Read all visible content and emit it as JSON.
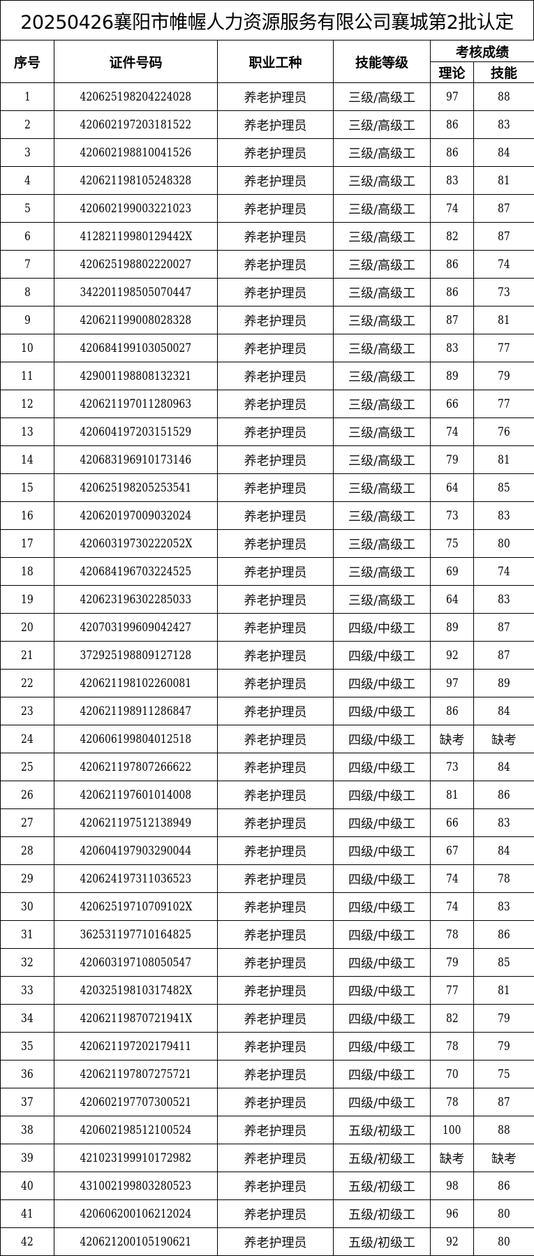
{
  "title": "20250426襄阳市帷幄人力资源服务有限公司襄城第2批认定",
  "headers": {
    "index": "序号",
    "id_number": "证件号码",
    "occupation": "职业工种",
    "skill_level": "技能等级",
    "scores": "考核成绩",
    "theory": "理论",
    "skill": "技能"
  },
  "rows": [
    [
      "1",
      "420625198204224028",
      "养老护理员",
      "三级/高级工",
      "97",
      "88"
    ],
    [
      "2",
      "420602197203181522",
      "养老护理员",
      "三级/高级工",
      "86",
      "83"
    ],
    [
      "3",
      "420602198810041526",
      "养老护理员",
      "三级/高级工",
      "86",
      "84"
    ],
    [
      "4",
      "420621198105248328",
      "养老护理员",
      "三级/高级工",
      "83",
      "81"
    ],
    [
      "5",
      "420602199003221023",
      "养老护理员",
      "三级/高级工",
      "74",
      "87"
    ],
    [
      "6",
      "41282119980129442X",
      "养老护理员",
      "三级/高级工",
      "82",
      "87"
    ],
    [
      "7",
      "420625198802220027",
      "养老护理员",
      "三级/高级工",
      "86",
      "74"
    ],
    [
      "8",
      "342201198505070447",
      "养老护理员",
      "三级/高级工",
      "86",
      "73"
    ],
    [
      "9",
      "420621199008028328",
      "养老护理员",
      "三级/高级工",
      "87",
      "81"
    ],
    [
      "10",
      "420684199103050027",
      "养老护理员",
      "三级/高级工",
      "83",
      "77"
    ],
    [
      "11",
      "429001198808132321",
      "养老护理员",
      "三级/高级工",
      "89",
      "79"
    ],
    [
      "12",
      "420621197011280963",
      "养老护理员",
      "三级/高级工",
      "66",
      "77"
    ],
    [
      "13",
      "420604197203151529",
      "养老护理员",
      "三级/高级工",
      "74",
      "76"
    ],
    [
      "14",
      "420683196910173146",
      "养老护理员",
      "三级/高级工",
      "79",
      "81"
    ],
    [
      "15",
      "420625198205253541",
      "养老护理员",
      "三级/高级工",
      "64",
      "85"
    ],
    [
      "16",
      "420620197009032024",
      "养老护理员",
      "三级/高级工",
      "73",
      "83"
    ],
    [
      "17",
      "42060319730222052X",
      "养老护理员",
      "三级/高级工",
      "75",
      "80"
    ],
    [
      "18",
      "420684196703224525",
      "养老护理员",
      "三级/高级工",
      "69",
      "74"
    ],
    [
      "19",
      "420623196302285033",
      "养老护理员",
      "三级/高级工",
      "64",
      "83"
    ],
    [
      "20",
      "420703199609042427",
      "养老护理员",
      "四级/中级工",
      "89",
      "87"
    ],
    [
      "21",
      "372925198809127128",
      "养老护理员",
      "四级/中级工",
      "92",
      "87"
    ],
    [
      "22",
      "420621198102260081",
      "养老护理员",
      "四级/中级工",
      "97",
      "89"
    ],
    [
      "23",
      "420621198911286847",
      "养老护理员",
      "四级/中级工",
      "86",
      "84"
    ],
    [
      "24",
      "420606199804012518",
      "养老护理员",
      "四级/中级工",
      "缺考",
      "缺考"
    ],
    [
      "25",
      "420621197807266622",
      "养老护理员",
      "四级/中级工",
      "73",
      "84"
    ],
    [
      "26",
      "420621197601014008",
      "养老护理员",
      "四级/中级工",
      "81",
      "86"
    ],
    [
      "27",
      "420621197512138949",
      "养老护理员",
      "四级/中级工",
      "66",
      "83"
    ],
    [
      "28",
      "420604197903290044",
      "养老护理员",
      "四级/中级工",
      "67",
      "84"
    ],
    [
      "29",
      "420624197311036523",
      "养老护理员",
      "四级/中级工",
      "74",
      "78"
    ],
    [
      "30",
      "42062519710709102X",
      "养老护理员",
      "四级/中级工",
      "74",
      "83"
    ],
    [
      "31",
      "362531197710164825",
      "养老护理员",
      "四级/中级工",
      "78",
      "86"
    ],
    [
      "32",
      "420603197108050547",
      "养老护理员",
      "四级/中级工",
      "79",
      "85"
    ],
    [
      "33",
      "42032519810317482X",
      "养老护理员",
      "四级/中级工",
      "77",
      "81"
    ],
    [
      "34",
      "42062119870721941X",
      "养老护理员",
      "四级/中级工",
      "82",
      "79"
    ],
    [
      "35",
      "420621197202179411",
      "养老护理员",
      "四级/中级工",
      "78",
      "79"
    ],
    [
      "36",
      "420621197807275721",
      "养老护理员",
      "四级/中级工",
      "70",
      "75"
    ],
    [
      "37",
      "420602197707300521",
      "养老护理员",
      "四级/中级工",
      "78",
      "87"
    ],
    [
      "38",
      "420602198512100524",
      "养老护理员",
      "五级/初级工",
      "100",
      "88"
    ],
    [
      "39",
      "421023199910172982",
      "养老护理员",
      "五级/初级工",
      "缺考",
      "缺考"
    ],
    [
      "40",
      "431002199803280523",
      "养老护理员",
      "五级/初级工",
      "98",
      "86"
    ],
    [
      "41",
      "420606200106212024",
      "养老护理员",
      "五级/初级工",
      "96",
      "80"
    ],
    [
      "42",
      "420621200105190621",
      "养老护理员",
      "五级/初级工",
      "92",
      "80"
    ]
  ]
}
